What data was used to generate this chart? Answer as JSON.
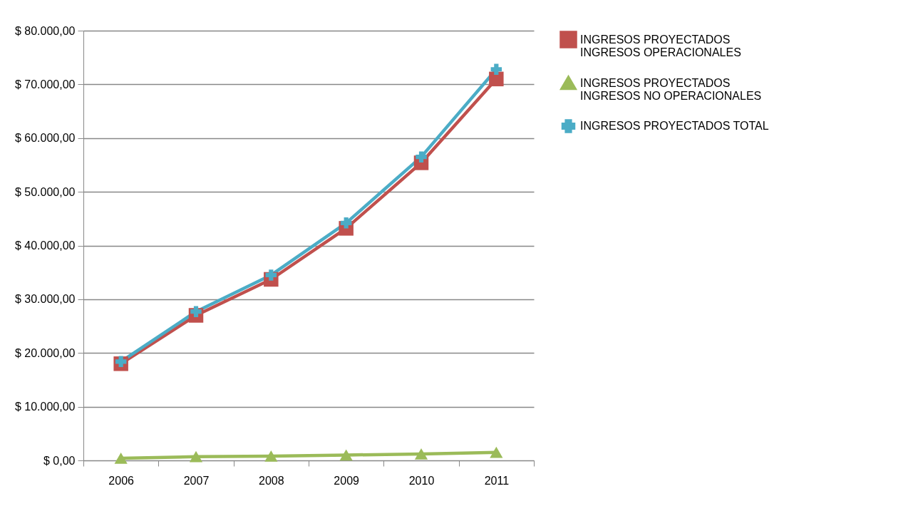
{
  "chart_data": {
    "type": "line",
    "categories": [
      "2006",
      "2007",
      "2008",
      "2009",
      "2010",
      "2011"
    ],
    "series": [
      {
        "name": "INGRESOS PROYECTADOS INGRESOS OPERACIONALES",
        "color": "#c0504d",
        "marker": "square",
        "values": [
          18000,
          27000,
          33700,
          43200,
          55400,
          71000
        ]
      },
      {
        "name": "INGRESOS PROYECTADOS INGRESOS NO OPERACIONALES",
        "color": "#9bbb59",
        "marker": "triangle",
        "values": [
          400,
          700,
          800,
          1000,
          1200,
          1500
        ]
      },
      {
        "name": "INGRESOS PROYECTADOS TOTAL",
        "color": "#4bacc6",
        "marker": "cross",
        "values": [
          18400,
          27700,
          34500,
          44200,
          56500,
          72800
        ]
      }
    ],
    "ylim": [
      0,
      80000
    ],
    "yticks": [
      {
        "value": 0,
        "label": "$ 0,00"
      },
      {
        "value": 10000,
        "label": "$ 10.000,00"
      },
      {
        "value": 20000,
        "label": "$ 20.000,00"
      },
      {
        "value": 30000,
        "label": "$ 30.000,00"
      },
      {
        "value": 40000,
        "label": "$ 40.000,00"
      },
      {
        "value": 50000,
        "label": "$ 50.000,00"
      },
      {
        "value": 60000,
        "label": "$ 60.000,00"
      },
      {
        "value": 70000,
        "label": "$ 70.000,00"
      },
      {
        "value": 80000,
        "label": "$ 80.000,00"
      }
    ],
    "grid": "y",
    "legend": "right",
    "line_style": "solid"
  }
}
